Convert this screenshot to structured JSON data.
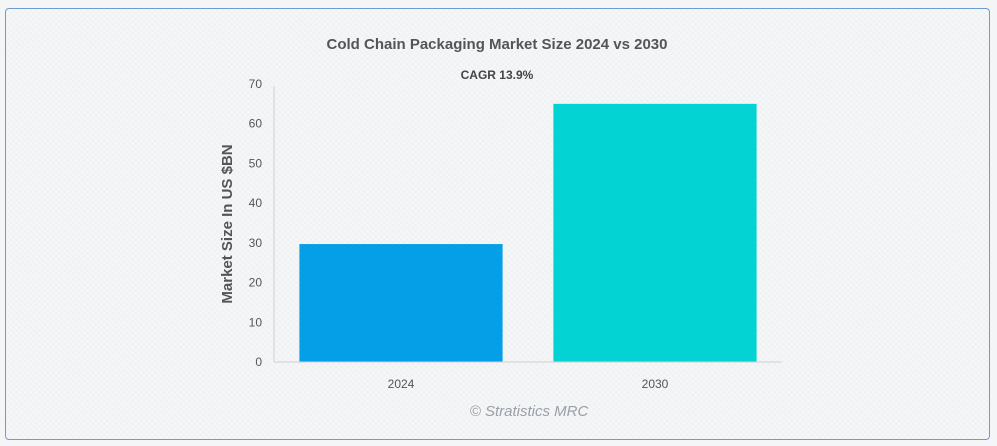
{
  "chart_data": {
    "type": "bar",
    "title": "Cold Chain Packaging Market Size 2024 vs 2030",
    "subtitle": "CAGR 13.9%",
    "xlabel": "",
    "ylabel": "Market Size In US $BN",
    "categories": [
      "2024",
      "2030"
    ],
    "values": [
      29.7,
      65.0
    ],
    "ylim": [
      0,
      70
    ],
    "yticks": [
      0,
      10,
      20,
      30,
      40,
      50,
      60,
      70
    ],
    "bar_colors": [
      "#059fe8",
      "#03d3d3"
    ],
    "grid": false,
    "legend": "none"
  },
  "watermark": "© Stratistics MRC"
}
